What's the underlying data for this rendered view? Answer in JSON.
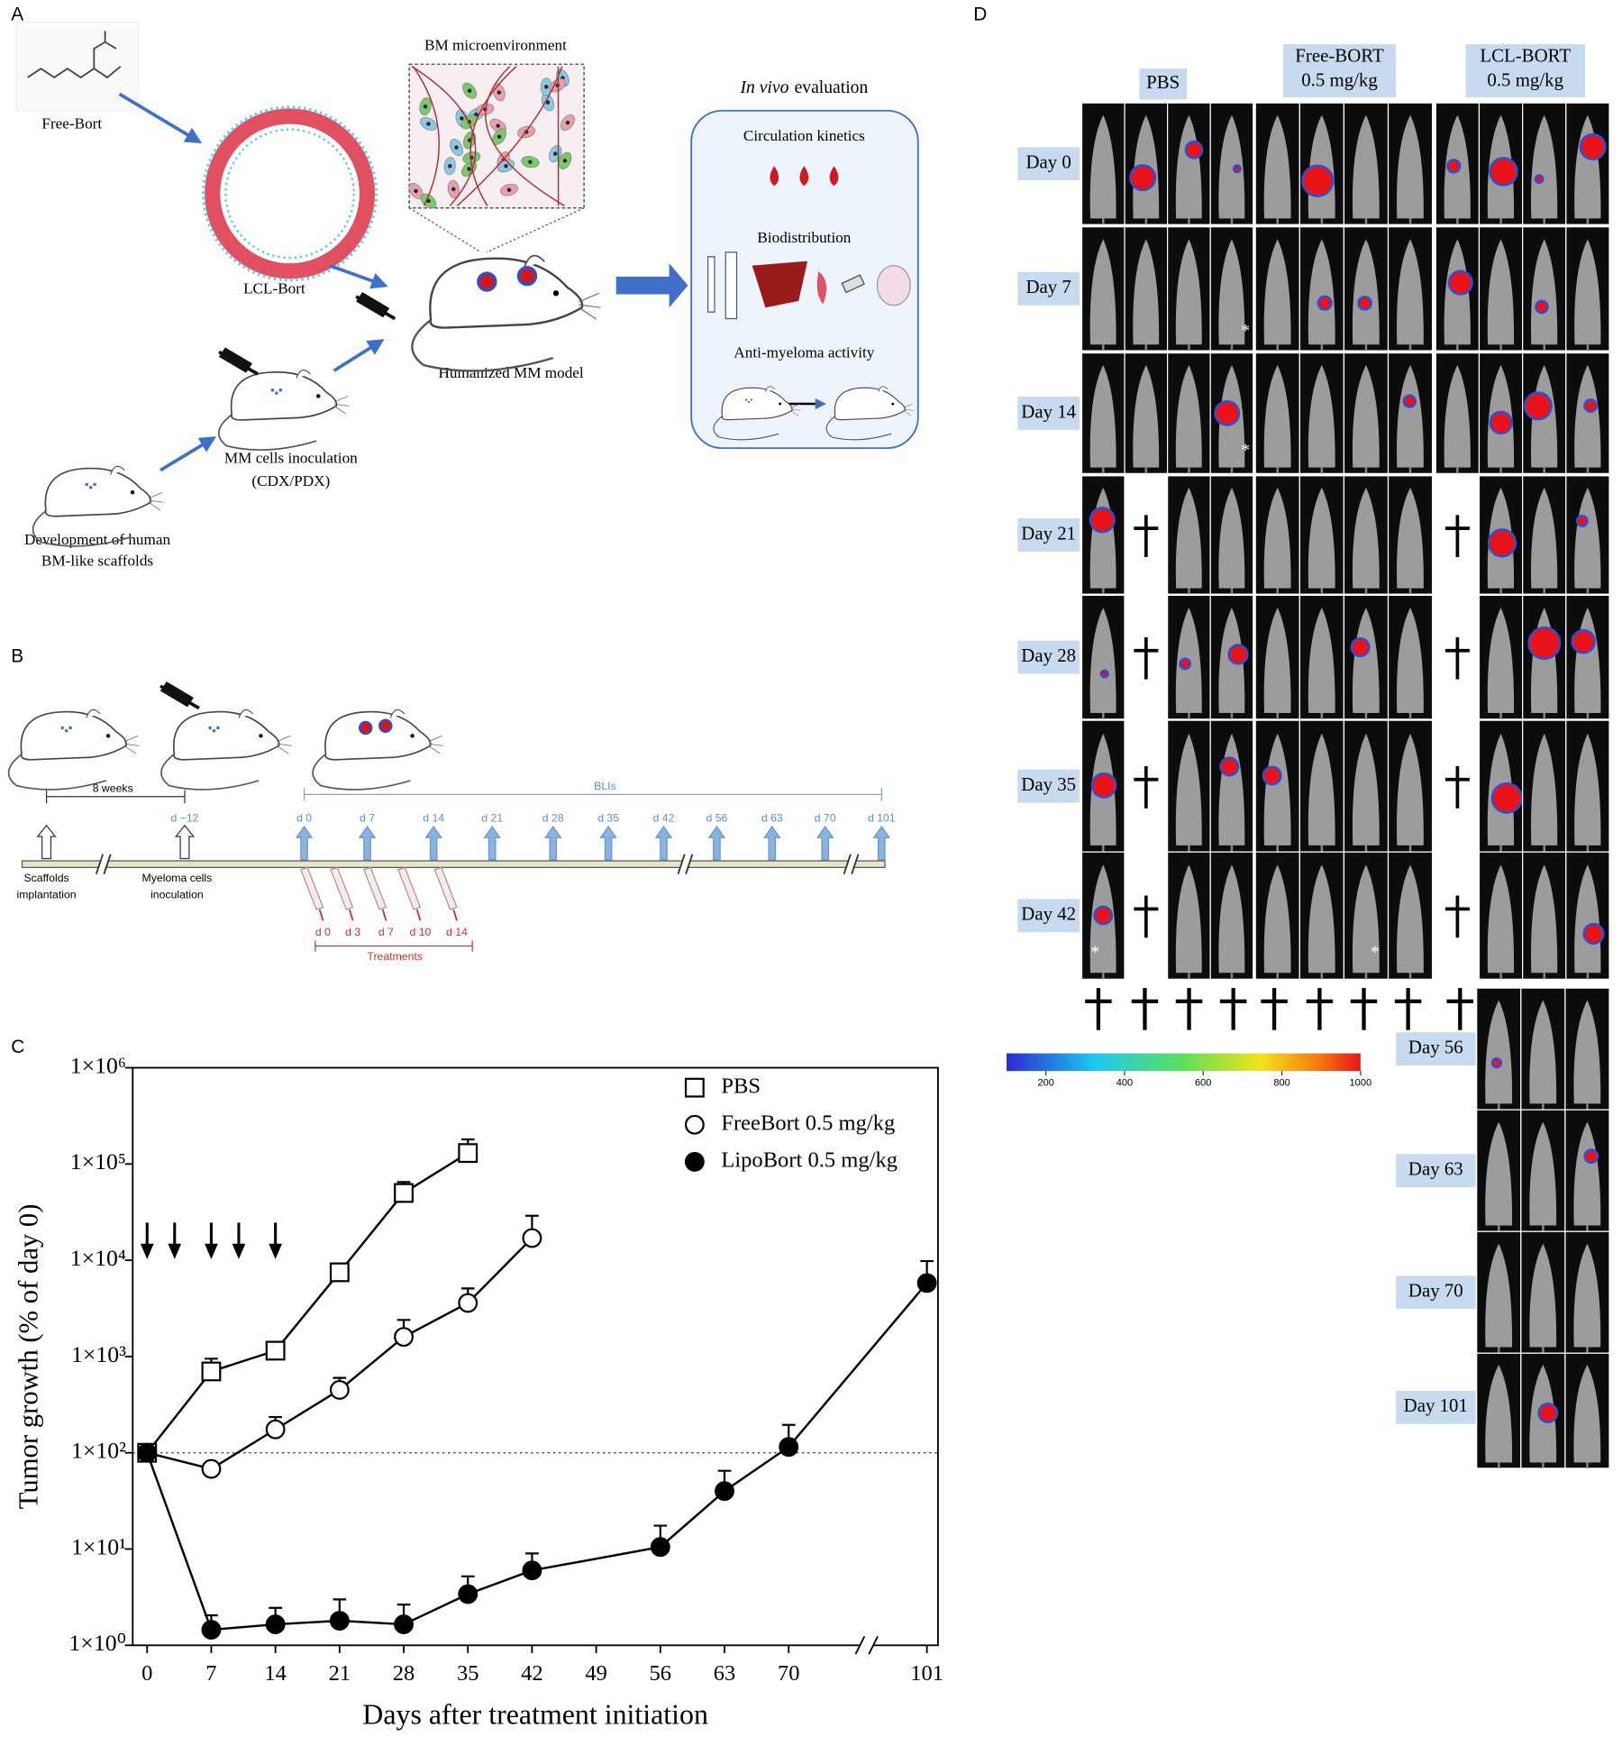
{
  "panel_a": {
    "letter": "A",
    "free_bort": "Free-Bort",
    "lcl_bort": "LCL-Bort",
    "bm_microenvironment": "BM microenvironment",
    "humanized_model": "Humanized MM model",
    "inoculation": [
      "MM cells inoculation",
      "(CDX/PDX)"
    ],
    "scaffolds": [
      "Development of human",
      "BM-like scaffolds"
    ],
    "evaluation": {
      "title_italic": "In vivo",
      "title_rest": "evaluation",
      "items": [
        "Circulation kinetics",
        "Biodistribution",
        "Anti-myeloma activity"
      ]
    }
  },
  "panel_b": {
    "letter": "B",
    "interval": "8 weeks",
    "inoculation_day": "d −12",
    "bli": "BLIs",
    "bli_days": [
      "d 0",
      "d 7",
      "d 14",
      "d 21",
      "d 28",
      "d 35",
      "d 42",
      "d 56",
      "d 63",
      "d 70",
      "d 101"
    ],
    "events": [
      [
        "Scaffolds",
        "implantation"
      ],
      [
        "Myeloma cells",
        "inoculation"
      ]
    ],
    "treatment_days": [
      "d 0",
      "d 3",
      "d 7",
      "d 10",
      "d 14"
    ],
    "treatments": "Treatments"
  },
  "chart_data": {
    "type": "line",
    "panel_label": "C",
    "xlabel": "Days after treatment initiation",
    "ylabel": "Tumor growth (% of day 0)",
    "xlim": [
      0,
      101
    ],
    "xticks": [
      0,
      7,
      14,
      21,
      28,
      35,
      42,
      49,
      56,
      63,
      70,
      101
    ],
    "axis_break": true,
    "log_y": true,
    "ylim": [
      1,
      1000000
    ],
    "yticks": [
      {
        "value": 1,
        "label": "1×10⁰"
      },
      {
        "value": 10,
        "label": "1×10¹"
      },
      {
        "value": 100,
        "label": "1×10²"
      },
      {
        "value": 1000,
        "label": "1×10³"
      },
      {
        "value": 10000,
        "label": "1×10⁴"
      },
      {
        "value": 100000,
        "label": "1×10⁵"
      },
      {
        "value": 1000000,
        "label": "1×10⁶"
      }
    ],
    "reference_line": 100,
    "treatment_arrows": [
      0,
      3,
      7,
      10,
      14
    ],
    "legend": "top right",
    "series": [
      {
        "name": "PBS",
        "marker": "square",
        "color": "#000000",
        "x": [
          0,
          7,
          14,
          21,
          28,
          35
        ],
        "values": [
          100,
          700,
          1150,
          7500,
          50000,
          130000
        ],
        "errors": [
          0,
          250,
          200,
          1500,
          15000,
          50000
        ]
      },
      {
        "name": "FreeBort 0.5 mg/kg",
        "marker": "circle",
        "color": "#000000",
        "x": [
          0,
          7,
          14,
          21,
          28,
          35,
          42
        ],
        "values": [
          100,
          68,
          175,
          450,
          1600,
          3600,
          17000
        ],
        "errors": [
          0,
          0,
          60,
          150,
          800,
          1500,
          12000
        ]
      },
      {
        "name": "LipoBort 0.5 mg/kg",
        "marker": "filled_circle",
        "color": "#000000",
        "x": [
          0,
          7,
          14,
          21,
          28,
          35,
          42,
          56,
          63,
          70,
          101
        ],
        "values": [
          100,
          1.45,
          1.65,
          1.8,
          1.65,
          3.4,
          6,
          10.5,
          40,
          115,
          5800
        ],
        "errors": [
          0,
          0.6,
          0.8,
          1.2,
          1,
          1.8,
          3,
          7,
          25,
          80,
          4000
        ]
      }
    ]
  },
  "panel_d": {
    "letter": "D",
    "groups": [
      [
        "PBS"
      ],
      [
        "Free-BORT",
        "0.5 mg/kg"
      ],
      [
        "LCL-BORT",
        "0.5 mg/kg"
      ]
    ],
    "rows": [
      "Day 0",
      "Day 7",
      "Day 14",
      "Day 21",
      "Day 28",
      "Day 35",
      "Day 42"
    ],
    "late_rows": [
      "Day 56",
      "Day 63",
      "Day 70",
      "Day 101"
    ],
    "asterisk": "*",
    "colorbar": {
      "lim": [
        100,
        1000
      ],
      "ticks": [
        200,
        400,
        600,
        800,
        1000
      ]
    }
  }
}
